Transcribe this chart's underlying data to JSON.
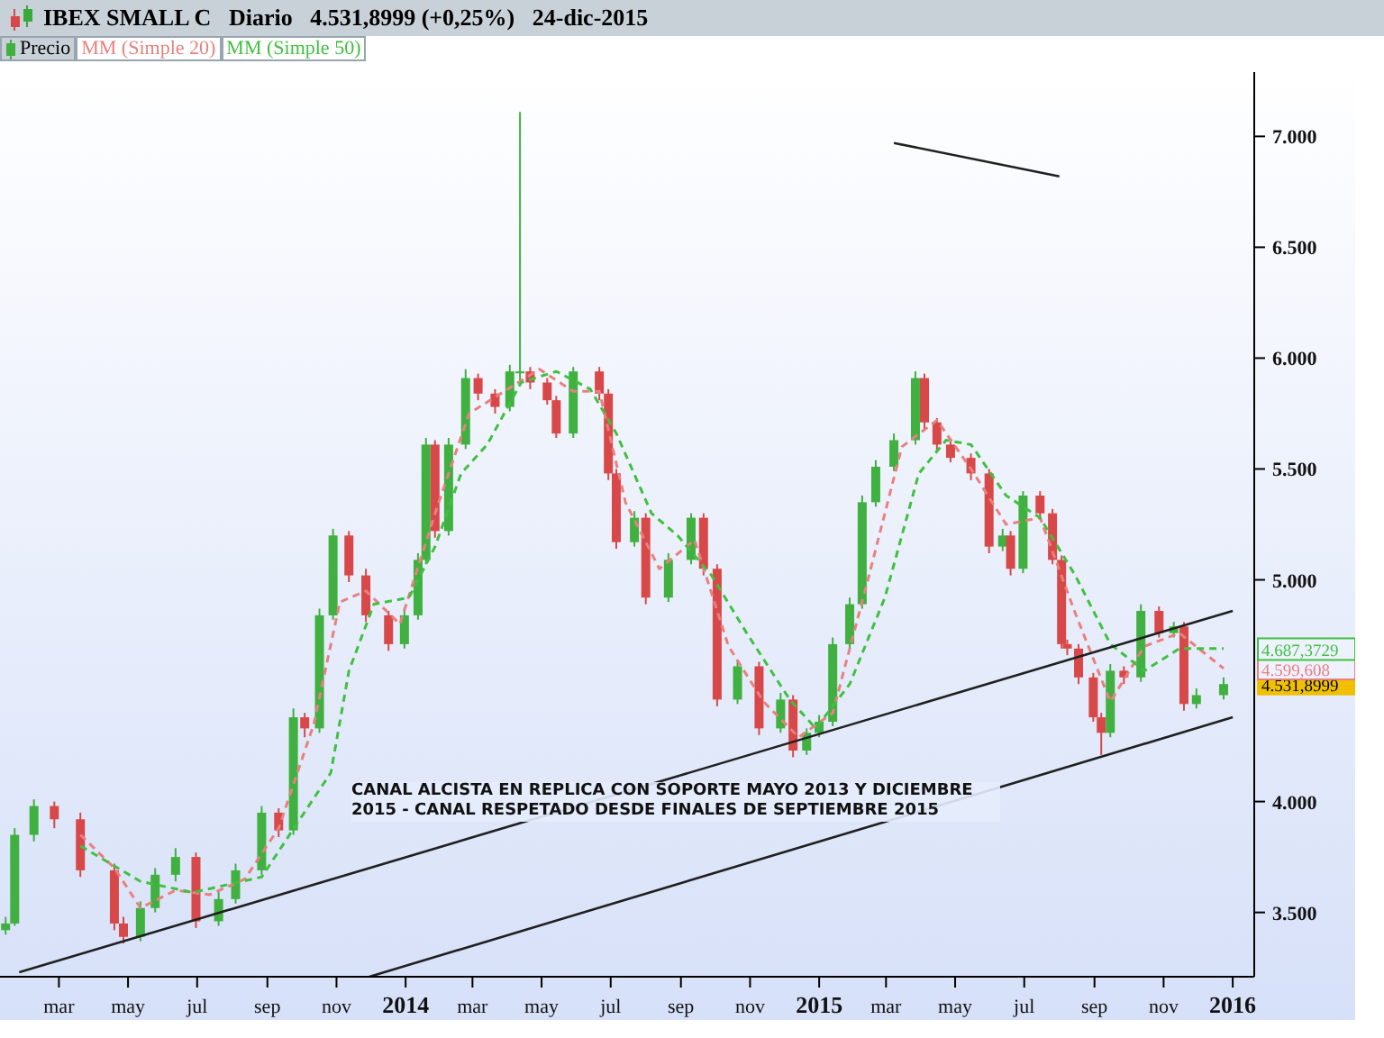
{
  "chart_data": {
    "type": "candlestick",
    "title": "IBEX SMALL C   Diario   4.531,8999 (+0,25%)   24-dic-2015",
    "legend": "top left",
    "grid": false,
    "ylim": [
      3210,
      7290
    ],
    "yticks": [
      {
        "value": 3500,
        "label": "3.500"
      },
      {
        "value": 4000,
        "label": "4.000"
      },
      {
        "value": 5000,
        "label": "5.000"
      },
      {
        "value": 5500,
        "label": "5.500"
      },
      {
        "value": 6000,
        "label": "6.000"
      },
      {
        "value": 6500,
        "label": "6.500"
      },
      {
        "value": 7000,
        "label": "7.000"
      }
    ],
    "xlim": [
      "2013-01-08",
      "2016-01-20"
    ],
    "xticks": [
      {
        "value": "2013-03-01",
        "label": "mar"
      },
      {
        "value": "2013-05-01",
        "label": "may"
      },
      {
        "value": "2013-07-01",
        "label": "jul"
      },
      {
        "value": "2013-09-01",
        "label": "sep"
      },
      {
        "value": "2013-11-01",
        "label": "nov"
      },
      {
        "value": "2014-01-01",
        "label": "2014"
      },
      {
        "value": "2014-03-01",
        "label": "mar"
      },
      {
        "value": "2014-05-01",
        "label": "may"
      },
      {
        "value": "2014-07-01",
        "label": "jul"
      },
      {
        "value": "2014-09-01",
        "label": "sep"
      },
      {
        "value": "2014-11-01",
        "label": "nov"
      },
      {
        "value": "2015-01-01",
        "label": "2015"
      },
      {
        "value": "2015-03-01",
        "label": "mar"
      },
      {
        "value": "2015-05-01",
        "label": "may"
      },
      {
        "value": "2015-07-01",
        "label": "jul"
      },
      {
        "value": "2015-09-01",
        "label": "sep"
      },
      {
        "value": "2015-11-01",
        "label": "nov"
      },
      {
        "value": "2016-01-01",
        "label": "2016"
      }
    ],
    "series": [
      {
        "type": "candlestick",
        "name": "Precio",
        "color": "#40b040",
        "colors": [
          "#40b040",
          "#40b040",
          "#40b040",
          "#d84848",
          "#d84848",
          "#d84848",
          "#d84848",
          "#40b040",
          "#40b040",
          "#40b040",
          "#d84848",
          "#40b040",
          "#40b040",
          "#40b040",
          "#d84848",
          "#40b040",
          "#d84848",
          "#40b040",
          "#40b040",
          "#d84848",
          "#d84848",
          "#d84848",
          "#40b040",
          "#40b040",
          "#40b040",
          "#d84848",
          "#40b040",
          "#40b040",
          "#d84848",
          "#d84848",
          "#40b040",
          "#40b040",
          "#d84848",
          "#d84848",
          "#d84848",
          "#40b040",
          "#d84848",
          "#d84848",
          "#d84848",
          "#40b040",
          "#d84848",
          "#40b040",
          "#40b040",
          "#d84848",
          "#d84848",
          "#40b040",
          "#d84848",
          "#40b040",
          "#d84848",
          "#40b040",
          "#40b040",
          "#40b040",
          "#40b040",
          "#40b040",
          "#40b040",
          "#40b040",
          "#40b040",
          "#d84848",
          "#d84848",
          "#d84848",
          "#d84848",
          "#d84848",
          "#40b040",
          "#d84848",
          "#40b040",
          "#d84848",
          "#d84848",
          "#d84848",
          "#d84848",
          "#d84848",
          "#d84848",
          "#d84848",
          "#40b040",
          "#d84848",
          "#40b040",
          "#d84848",
          "#40b040",
          "#d84848",
          "#40b040",
          "#40b040"
        ],
        "x": [
          "2013-01-13",
          "2013-01-21",
          "2013-02-07",
          "2013-02-25",
          "2013-03-20",
          "2013-04-19",
          "2013-04-27",
          "2013-05-12",
          "2013-05-25",
          "2013-06-12",
          "2013-06-30",
          "2013-07-20",
          "2013-08-04",
          "2013-08-27",
          "2013-09-11",
          "2013-09-24",
          "2013-10-04",
          "2013-10-17",
          "2013-10-29",
          "2013-11-12",
          "2013-11-27",
          "2013-12-17",
          "2013-12-31",
          "2014-01-12",
          "2014-01-19",
          "2014-01-27",
          "2014-02-08",
          "2014-02-23",
          "2014-03-06",
          "2014-03-21",
          "2014-04-03",
          "2014-04-12",
          "2014-04-21",
          "2014-05-06",
          "2014-05-14",
          "2014-05-29",
          "2014-06-21",
          "2014-06-29",
          "2014-07-06",
          "2014-07-22",
          "2014-08-01",
          "2014-08-21",
          "2014-09-10",
          "2014-09-21",
          "2014-10-03",
          "2014-10-21",
          "2014-11-09",
          "2014-11-28",
          "2014-12-09",
          "2014-12-21",
          "2015-01-01",
          "2015-01-13",
          "2015-01-28",
          "2015-02-08",
          "2015-02-20",
          "2015-03-08",
          "2015-03-27",
          "2015-04-04",
          "2015-04-15",
          "2015-04-27",
          "2015-05-15",
          "2015-05-31",
          "2015-06-12",
          "2015-06-19",
          "2015-06-30",
          "2015-07-15",
          "2015-07-26",
          "2015-08-03",
          "2015-08-08",
          "2015-08-18",
          "2015-08-31",
          "2015-09-07",
          "2015-09-15",
          "2015-09-27",
          "2015-10-12",
          "2015-10-28",
          "2015-11-10",
          "2015-11-19",
          "2015-11-30",
          "2015-12-24"
        ],
        "ohlc": [
          [
            3420,
            3480,
            3400,
            3450
          ],
          [
            3450,
            3880,
            3440,
            3850
          ],
          [
            3850,
            4010,
            3820,
            3980
          ],
          [
            3980,
            4000,
            3880,
            3920
          ],
          [
            3920,
            3950,
            3660,
            3690
          ],
          [
            3690,
            3720,
            3420,
            3450
          ],
          [
            3450,
            3480,
            3360,
            3390
          ],
          [
            3390,
            3550,
            3370,
            3520
          ],
          [
            3520,
            3700,
            3500,
            3670
          ],
          [
            3670,
            3790,
            3640,
            3750
          ],
          [
            3750,
            3770,
            3430,
            3460
          ],
          [
            3460,
            3600,
            3440,
            3560
          ],
          [
            3560,
            3720,
            3540,
            3690
          ],
          [
            3690,
            3980,
            3670,
            3950
          ],
          [
            3950,
            3970,
            3840,
            3870
          ],
          [
            3870,
            4420,
            3850,
            4380
          ],
          [
            4380,
            4400,
            4290,
            4330
          ],
          [
            4330,
            4870,
            4310,
            4840
          ],
          [
            4840,
            5230,
            4820,
            5200
          ],
          [
            5200,
            5220,
            4990,
            5020
          ],
          [
            5020,
            5050,
            4810,
            4840
          ],
          [
            4840,
            4860,
            4680,
            4710
          ],
          [
            4710,
            4870,
            4690,
            4840
          ],
          [
            4840,
            5120,
            4820,
            5090
          ],
          [
            5090,
            5640,
            5070,
            5610
          ],
          [
            5610,
            5630,
            5190,
            5220
          ],
          [
            5220,
            5640,
            5200,
            5610
          ],
          [
            5610,
            5950,
            5590,
            5910
          ],
          [
            5910,
            5930,
            5810,
            5840
          ],
          [
            5840,
            5860,
            5750,
            5780
          ],
          [
            5780,
            5970,
            5760,
            5940
          ],
          [
            5940,
            7110,
            5900,
            5940
          ],
          [
            5940,
            5960,
            5860,
            5890
          ],
          [
            5890,
            5910,
            5790,
            5810
          ],
          [
            5810,
            5830,
            5640,
            5660
          ],
          [
            5660,
            5960,
            5640,
            5940
          ],
          [
            5940,
            5960,
            5810,
            5840
          ],
          [
            5840,
            5860,
            5450,
            5480
          ],
          [
            5480,
            5500,
            5140,
            5170
          ],
          [
            5170,
            5310,
            5150,
            5280
          ],
          [
            5280,
            5300,
            4890,
            4920
          ],
          [
            4920,
            5120,
            4900,
            5090
          ],
          [
            5090,
            5300,
            5070,
            5280
          ],
          [
            5280,
            5300,
            5020,
            5050
          ],
          [
            5050,
            5070,
            4430,
            4460
          ],
          [
            4460,
            4640,
            4440,
            4610
          ],
          [
            4610,
            4630,
            4300,
            4330
          ],
          [
            4330,
            4490,
            4310,
            4460
          ],
          [
            4460,
            4480,
            4200,
            4230
          ],
          [
            4230,
            4330,
            4210,
            4310
          ],
          [
            4310,
            4390,
            4290,
            4360
          ],
          [
            4360,
            4740,
            4340,
            4710
          ],
          [
            4710,
            4920,
            4690,
            4890
          ],
          [
            4890,
            5380,
            4870,
            5350
          ],
          [
            5350,
            5540,
            5330,
            5510
          ],
          [
            5510,
            5660,
            5490,
            5630
          ],
          [
            5630,
            5940,
            5610,
            5910
          ],
          [
            5910,
            5930,
            5680,
            5710
          ],
          [
            5710,
            5730,
            5580,
            5610
          ],
          [
            5610,
            5630,
            5530,
            5550
          ],
          [
            5550,
            5570,
            5450,
            5480
          ],
          [
            5480,
            5500,
            5120,
            5150
          ],
          [
            5150,
            5230,
            5130,
            5200
          ],
          [
            5200,
            5220,
            5020,
            5050
          ],
          [
            5050,
            5400,
            5030,
            5380
          ],
          [
            5380,
            5400,
            5280,
            5300
          ],
          [
            5300,
            5320,
            5070,
            5090
          ],
          [
            5090,
            5110,
            4690,
            4710
          ],
          [
            4710,
            4730,
            4660,
            4690
          ],
          [
            4690,
            4710,
            4530,
            4560
          ],
          [
            4560,
            4580,
            4360,
            4380
          ],
          [
            4380,
            4400,
            4210,
            4310
          ],
          [
            4310,
            4620,
            4290,
            4590
          ],
          [
            4590,
            4610,
            4530,
            4560
          ],
          [
            4560,
            4890,
            4540,
            4860
          ],
          [
            4860,
            4880,
            4740,
            4760
          ],
          [
            4760,
            4810,
            4740,
            4790
          ],
          [
            4790,
            4810,
            4410,
            4440
          ],
          [
            4440,
            4510,
            4420,
            4480
          ],
          [
            4480,
            4560,
            4460,
            4530
          ]
        ]
      },
      {
        "type": "line",
        "name": "MM (Simple 20)",
        "color": "#e88080",
        "line_style": "dashed",
        "x": [
          "2013-03-20",
          "2013-04-19",
          "2013-05-12",
          "2013-06-12",
          "2013-07-12",
          "2013-08-12",
          "2013-09-11",
          "2013-10-12",
          "2013-11-04",
          "2013-11-27",
          "2013-12-27",
          "2014-01-27",
          "2014-02-26",
          "2014-03-29",
          "2014-04-29",
          "2014-05-29",
          "2014-06-21",
          "2014-07-14",
          "2014-08-13",
          "2014-09-13",
          "2014-10-13",
          "2014-11-13",
          "2014-12-14",
          "2015-01-13",
          "2015-02-13",
          "2015-03-15",
          "2015-04-15",
          "2015-05-15",
          "2015-06-15",
          "2015-07-15",
          "2015-08-15",
          "2015-09-15",
          "2015-10-15",
          "2015-11-15",
          "2015-12-24"
        ],
        "values": [
          3850,
          3700,
          3520,
          3600,
          3580,
          3650,
          3880,
          4350,
          4900,
          4950,
          4800,
          5300,
          5750,
          5850,
          5950,
          5850,
          5850,
          5350,
          5050,
          5180,
          4700,
          4450,
          4290,
          4400,
          5000,
          5600,
          5720,
          5500,
          5250,
          5280,
          4850,
          4450,
          4700,
          4760,
          4600
        ]
      },
      {
        "type": "line",
        "name": "MM (Simple 50)",
        "color": "#40c040",
        "line_style": "dashed",
        "x": [
          "2013-03-20",
          "2013-05-12",
          "2013-06-27",
          "2013-08-27",
          "2013-09-27",
          "2013-10-27",
          "2013-11-12",
          "2013-12-04",
          "2014-01-04",
          "2014-01-27",
          "2014-02-19",
          "2014-03-14",
          "2014-04-13",
          "2014-05-14",
          "2014-06-13",
          "2014-07-06",
          "2014-08-06",
          "2014-08-29",
          "2014-09-28",
          "2014-10-29",
          "2014-12-06",
          "2014-12-29",
          "2015-01-28",
          "2015-02-28",
          "2015-03-30",
          "2015-04-23",
          "2015-05-15",
          "2015-06-15",
          "2015-07-15",
          "2015-08-15",
          "2015-09-15",
          "2015-10-15",
          "2015-11-15",
          "2015-12-24"
        ],
        "values": [
          3800,
          3640,
          3590,
          3660,
          3900,
          4130,
          4590,
          4890,
          4920,
          5150,
          5480,
          5610,
          5890,
          5940,
          5860,
          5660,
          5300,
          5200,
          5020,
          4760,
          4460,
          4330,
          4530,
          4920,
          5480,
          5630,
          5610,
          5380,
          5280,
          5020,
          4710,
          4590,
          4690,
          4690
        ]
      },
      {
        "type": "line",
        "color": "#202020",
        "line_style": "solid",
        "x": [
          "2013-01-25",
          "2016-01-01"
        ],
        "values": [
          3230,
          4860
        ]
      },
      {
        "type": "line",
        "color": "#202020",
        "line_style": "solid",
        "x": [
          "2013-11-30",
          "2016-01-01"
        ],
        "values": [
          3210,
          4380
        ]
      },
      {
        "type": "line",
        "color": "#202020",
        "line_style": "solid",
        "x": [
          "2015-03-08",
          "2015-08-01"
        ],
        "values": [
          6970,
          6820
        ]
      }
    ],
    "annotations": [
      {
        "text": "4.531,8999",
        "x": "2015-12-24",
        "y": 4531.8999
      },
      {
        "text": "4.599,608",
        "x": "2015-12-24",
        "y": 4599.608
      },
      {
        "text": "4.687,3729",
        "x": "2015-12-24",
        "y": 4687.3729
      },
      "CANAL ALCISTA EN REPLICA CON SOPORTE MAYO 2013 Y DICIEMBRE 2015 - CANAL RESPETADO DESDE FINALES DE SEPTIEMBRE 2015"
    ]
  }
}
